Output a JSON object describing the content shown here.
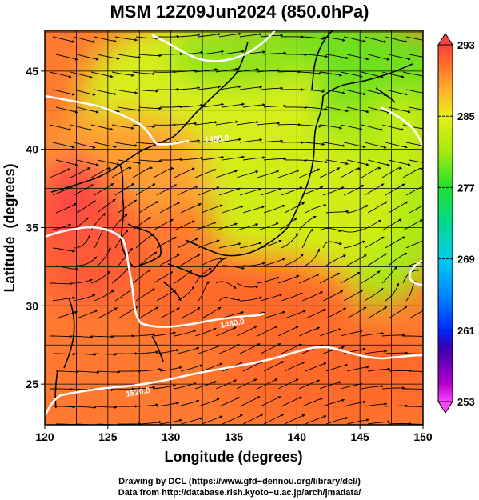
{
  "title": "MSM 12Z09Jun2024 (850.0hPa)",
  "x_axis": {
    "label": "Longitude (degrees)",
    "ticks": [
      120,
      125,
      130,
      135,
      140,
      145,
      150
    ],
    "range": [
      120,
      150
    ]
  },
  "y_axis": {
    "label": "Latitude  (degrees)",
    "ticks": [
      25,
      30,
      35,
      40,
      45
    ],
    "range": [
      22.4,
      47.6
    ]
  },
  "colorbar": {
    "ticks": [
      293,
      285,
      277,
      269,
      261,
      253
    ],
    "range": [
      253,
      293
    ],
    "stops": [
      {
        "v": 253,
        "c": "#ff44ff"
      },
      {
        "v": 255,
        "c": "#b000c8"
      },
      {
        "v": 259,
        "c": "#3a00b0"
      },
      {
        "v": 261,
        "c": "#0028ff"
      },
      {
        "v": 265,
        "c": "#0088ff"
      },
      {
        "v": 269,
        "c": "#00ccee"
      },
      {
        "v": 273,
        "c": "#00d890"
      },
      {
        "v": 277,
        "c": "#22e030"
      },
      {
        "v": 281,
        "c": "#a6ea10"
      },
      {
        "v": 285,
        "c": "#e8ee18"
      },
      {
        "v": 288,
        "c": "#ffb030"
      },
      {
        "v": 291,
        "c": "#ff6a2a"
      },
      {
        "v": 293,
        "c": "#ff4040"
      }
    ]
  },
  "contour_labels": [
    "1520.0",
    "1480.0",
    "1480.0"
  ],
  "footer": {
    "line1": "Drawing by DCL (https://www.gfd−dennou.org/library/dcl/)",
    "line2": "Data from http://database.rish.kyoto−u.ac.jp/arch/jmadata/"
  }
}
